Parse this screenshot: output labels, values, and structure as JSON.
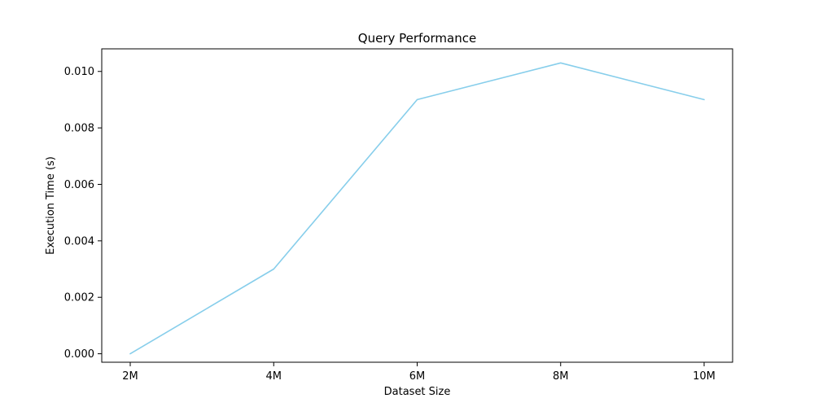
{
  "chart_data": {
    "type": "line",
    "title": "Query Performance",
    "xlabel": "Dataset Size",
    "ylabel": "Execution Time (s)",
    "categories": [
      "2M",
      "4M",
      "6M",
      "8M",
      "10M"
    ],
    "series": [
      {
        "values": [
          0.0,
          0.003,
          0.009,
          0.0103,
          0.009
        ],
        "color": "#87CEEB"
      }
    ],
    "ylim": [
      -0.0003,
      0.0108
    ],
    "yticks": [
      0.0,
      0.002,
      0.004,
      0.006,
      0.008,
      0.01
    ],
    "ytick_labels": [
      "0.000",
      "0.002",
      "0.004",
      "0.006",
      "0.008",
      "0.010"
    ],
    "grid": false,
    "legend": "none"
  }
}
